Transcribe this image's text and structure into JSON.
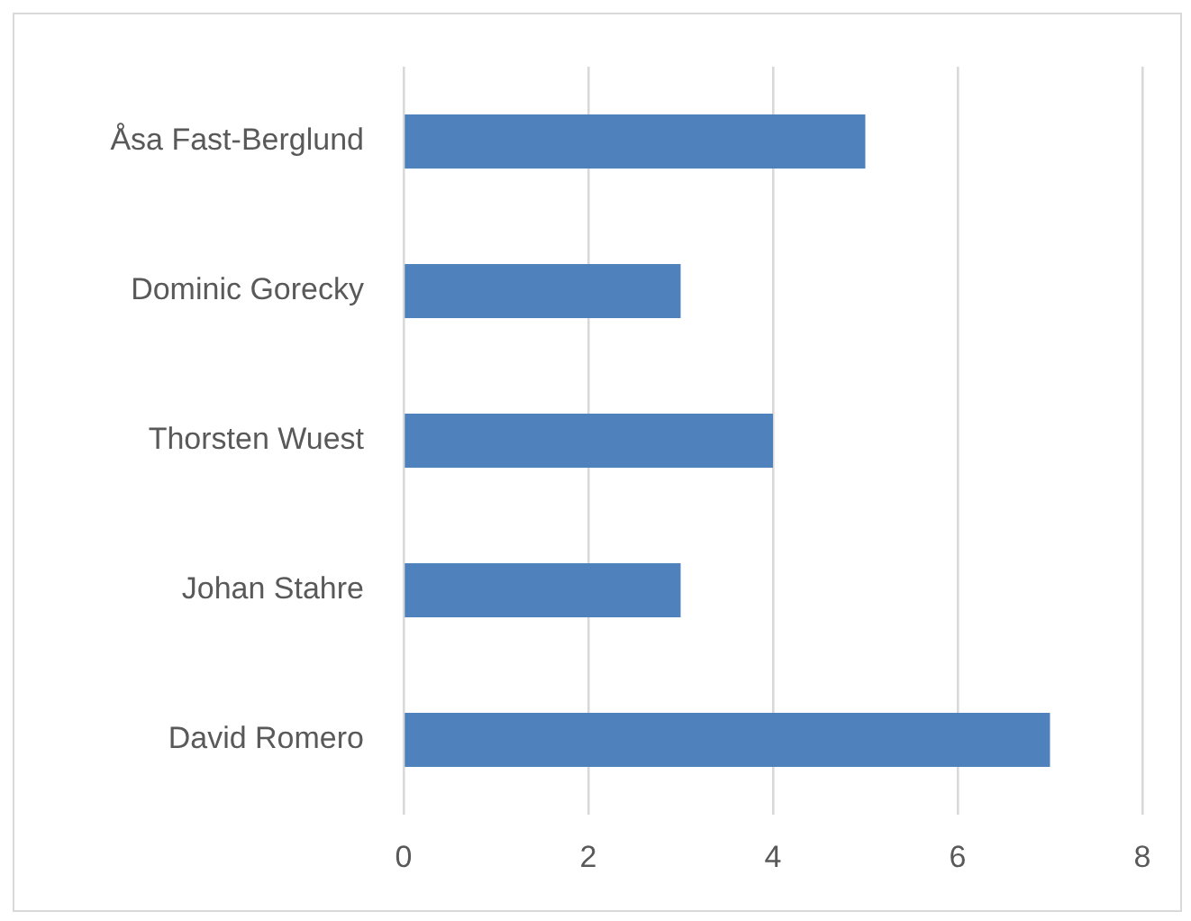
{
  "chart_data": {
    "type": "bar",
    "orientation": "horizontal",
    "categories": [
      "Åsa Fast-Berglund",
      "Dominic Gorecky",
      "Thorsten Wuest",
      "Johan Stahre",
      "David Romero"
    ],
    "values": [
      5,
      3,
      4,
      3,
      7
    ],
    "color": "#4f81bd",
    "xlim": [
      0,
      8
    ],
    "xticks": [
      0,
      2,
      4,
      6,
      8
    ],
    "grid": "x",
    "legend": false
  }
}
